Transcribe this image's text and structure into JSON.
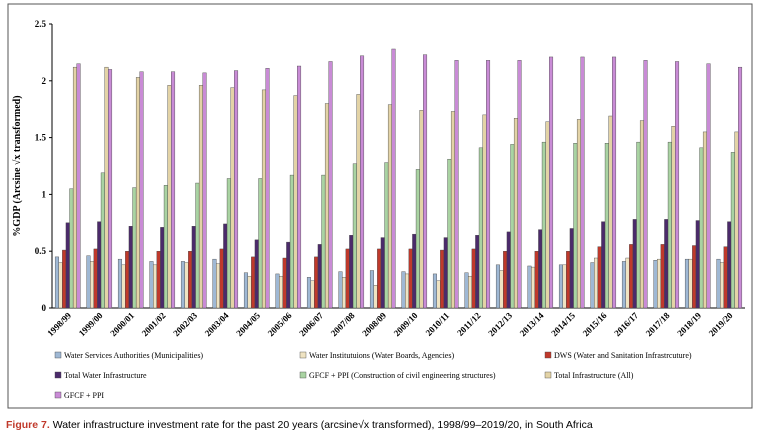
{
  "chart_data": {
    "type": "bar",
    "y_label": "%GDP (Arcsine √x transformed)",
    "caption_label": "Figure 7.",
    "caption": "Water infrastructure investment rate for the past 20 years (arcsine√x transformed), 1998/99–2019/20, in South Africa",
    "categories": [
      "1998/99",
      "1999/00",
      "2000/01",
      "2001/02",
      "2002/03",
      "2003/04",
      "2004/05",
      "2005/06",
      "2006/07",
      "2007/08",
      "2008/09",
      "2009/10",
      "2010/11",
      "2011/12",
      "2012/13",
      "2013/14",
      "2014/15",
      "2015/16",
      "2016/17",
      "2017/18",
      "2018/19",
      "2019/20"
    ],
    "ylim": [
      0,
      2.5
    ],
    "yticks": [
      0,
      0.5,
      1,
      1.5,
      2,
      2.5
    ],
    "series": [
      {
        "name": "Water Services Authorities (Municipalities)",
        "color": "#9fb8d4",
        "values": [
          0.45,
          0.46,
          0.43,
          0.41,
          0.41,
          0.43,
          0.31,
          0.3,
          0.27,
          0.32,
          0.33,
          0.32,
          0.3,
          0.31,
          0.38,
          0.37,
          0.38,
          0.4,
          0.41,
          0.42,
          0.43,
          0.43
        ]
      },
      {
        "name": "Water Institutuions (Water Boards, Agencies)",
        "color": "#efe3c2",
        "values": [
          0.4,
          0.41,
          0.38,
          0.38,
          0.4,
          0.39,
          0.28,
          0.28,
          0.24,
          0.27,
          0.2,
          0.3,
          0.24,
          0.28,
          0.33,
          0.36,
          0.38,
          0.44,
          0.44,
          0.43,
          0.43,
          0.4
        ]
      },
      {
        "name": "DWS (Water and Sanitation Infrastrcuture)",
        "color": "#c0392b",
        "values": [
          0.51,
          0.52,
          0.5,
          0.5,
          0.5,
          0.52,
          0.45,
          0.44,
          0.45,
          0.52,
          0.52,
          0.52,
          0.51,
          0.52,
          0.5,
          0.5,
          0.5,
          0.54,
          0.56,
          0.56,
          0.55,
          0.54
        ]
      },
      {
        "name": "Total Water Infrastructure",
        "color": "#4b2a6b",
        "values": [
          0.75,
          0.76,
          0.72,
          0.71,
          0.72,
          0.74,
          0.6,
          0.58,
          0.56,
          0.64,
          0.62,
          0.65,
          0.62,
          0.64,
          0.67,
          0.69,
          0.7,
          0.76,
          0.78,
          0.78,
          0.77,
          0.76
        ]
      },
      {
        "name": "GFCF + PPI (Construction of civil engineering structures)",
        "color": "#a9d3a2",
        "values": [
          1.05,
          1.19,
          1.06,
          1.08,
          1.1,
          1.14,
          1.14,
          1.17,
          1.17,
          1.27,
          1.28,
          1.22,
          1.31,
          1.41,
          1.44,
          1.46,
          1.45,
          1.45,
          1.46,
          1.46,
          1.41,
          1.37
        ]
      },
      {
        "name": "Total Infrastructure (All)",
        "color": "#e3d3a6",
        "values": [
          2.12,
          2.12,
          2.03,
          1.96,
          1.96,
          1.94,
          1.92,
          1.87,
          1.8,
          1.88,
          1.79,
          1.74,
          1.73,
          1.7,
          1.67,
          1.64,
          1.66,
          1.69,
          1.65,
          1.6,
          1.55,
          1.55
        ]
      },
      {
        "name": "GFCF + PPI",
        "color": "#c98bd6",
        "values": [
          2.15,
          2.1,
          2.08,
          2.08,
          2.07,
          2.09,
          2.11,
          2.13,
          2.17,
          2.22,
          2.28,
          2.23,
          2.18,
          2.18,
          2.18,
          2.21,
          2.21,
          2.21,
          2.18,
          2.17,
          2.15,
          2.12
        ]
      }
    ]
  }
}
